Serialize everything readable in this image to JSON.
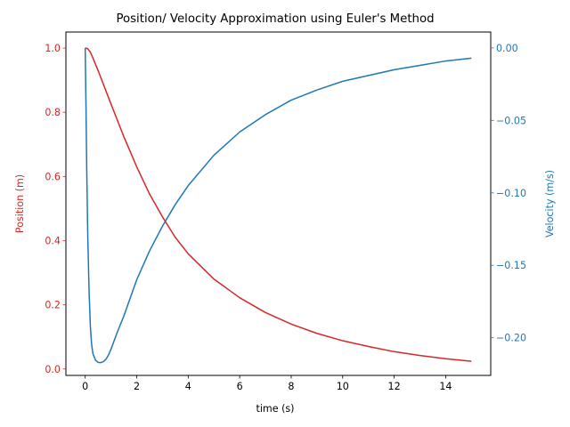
{
  "chart_data": {
    "type": "line",
    "title": "Position/ Velocity Approximation using Euler's Method",
    "xlabel": "time (s)",
    "ylabel_left": "Position (m)",
    "ylabel_right": "Velocity (m/s)",
    "xlim": [
      -0.75,
      15.75
    ],
    "ylim_left": [
      -0.02,
      1.05
    ],
    "ylim_right": [
      -0.226,
      0.011
    ],
    "x_ticks": [
      0,
      2,
      4,
      6,
      8,
      10,
      12,
      14
    ],
    "x_tick_labels": [
      "0",
      "2",
      "4",
      "6",
      "8",
      "10",
      "12",
      "14"
    ],
    "y_left_ticks": [
      0.0,
      0.2,
      0.4,
      0.6,
      0.8,
      1.0
    ],
    "y_left_tick_labels": [
      "0.0",
      "0.2",
      "0.4",
      "0.6",
      "0.8",
      "1.0"
    ],
    "y_right_ticks": [
      0.0,
      -0.05,
      -0.1,
      -0.15,
      -0.2
    ],
    "y_right_tick_labels": [
      "0.00",
      "−0.05",
      "−0.10",
      "−0.15",
      "−0.20"
    ],
    "grid": false,
    "colors": {
      "position": "#d62728",
      "velocity": "#1f77b4",
      "axis": "#000000"
    },
    "series": [
      {
        "axis": "left",
        "color": "#d62728",
        "x": [
          0,
          0.1,
          0.2,
          0.3,
          0.5,
          0.75,
          1,
          1.5,
          2,
          2.5,
          3,
          3.5,
          4,
          5,
          6,
          7,
          8,
          9,
          10,
          11,
          12,
          13,
          14,
          15
        ],
        "values": [
          1.0,
          0.998,
          0.987,
          0.969,
          0.93,
          0.878,
          0.826,
          0.724,
          0.63,
          0.545,
          0.474,
          0.41,
          0.359,
          0.28,
          0.222,
          0.176,
          0.14,
          0.111,
          0.088,
          0.07,
          0.054,
          0.042,
          0.032,
          0.024
        ]
      },
      {
        "axis": "right",
        "color": "#1f77b4",
        "x": [
          0,
          0.03,
          0.06,
          0.1,
          0.15,
          0.2,
          0.25,
          0.3,
          0.4,
          0.5,
          0.6,
          0.7,
          0.8,
          0.9,
          1,
          1.25,
          1.5,
          2,
          2.5,
          3,
          3.5,
          4,
          5,
          6,
          7,
          8,
          9,
          10,
          11,
          12,
          13,
          14,
          15
        ],
        "values": [
          0.0,
          -0.04,
          -0.085,
          -0.13,
          -0.168,
          -0.192,
          -0.205,
          -0.211,
          -0.2155,
          -0.217,
          -0.2172,
          -0.2165,
          -0.215,
          -0.212,
          -0.208,
          -0.196,
          -0.185,
          -0.16,
          -0.14,
          -0.123,
          -0.108,
          -0.095,
          -0.074,
          -0.058,
          -0.046,
          -0.036,
          -0.029,
          -0.023,
          -0.019,
          -0.015,
          -0.012,
          -0.009,
          -0.007
        ]
      }
    ]
  }
}
